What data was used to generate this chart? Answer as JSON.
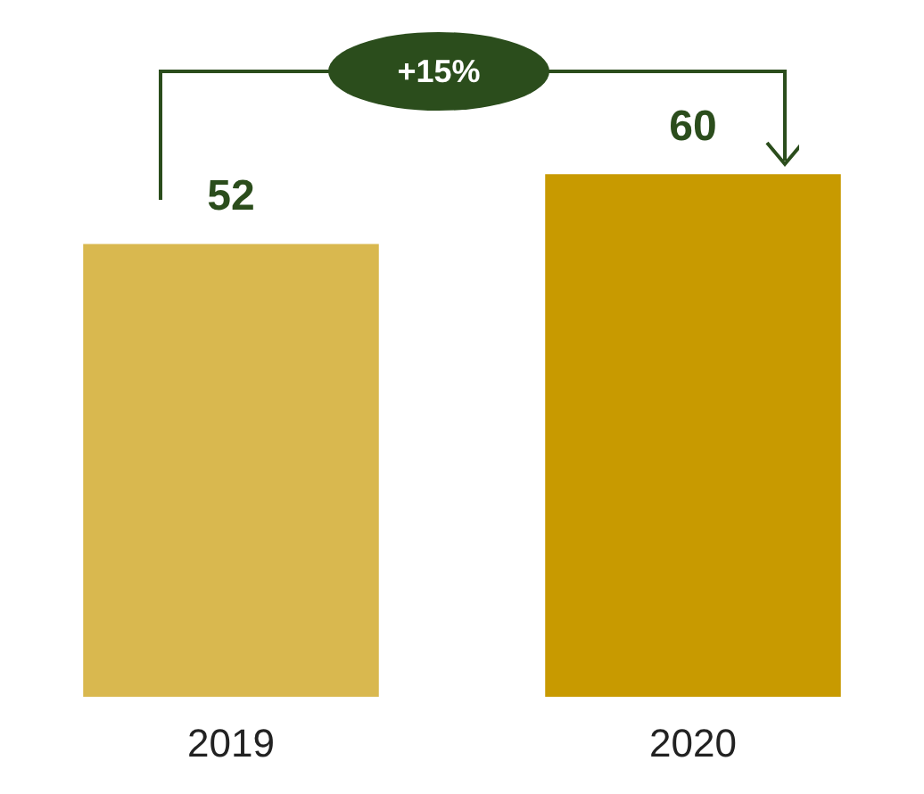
{
  "chart_data": {
    "type": "bar",
    "categories": [
      "2019",
      "2020"
    ],
    "values": [
      52,
      60
    ],
    "colors": [
      "#d9b84f",
      "#c89a00"
    ],
    "data_labels": true,
    "annotations": [
      "+15%"
    ],
    "grid": false,
    "legend": false
  }
}
